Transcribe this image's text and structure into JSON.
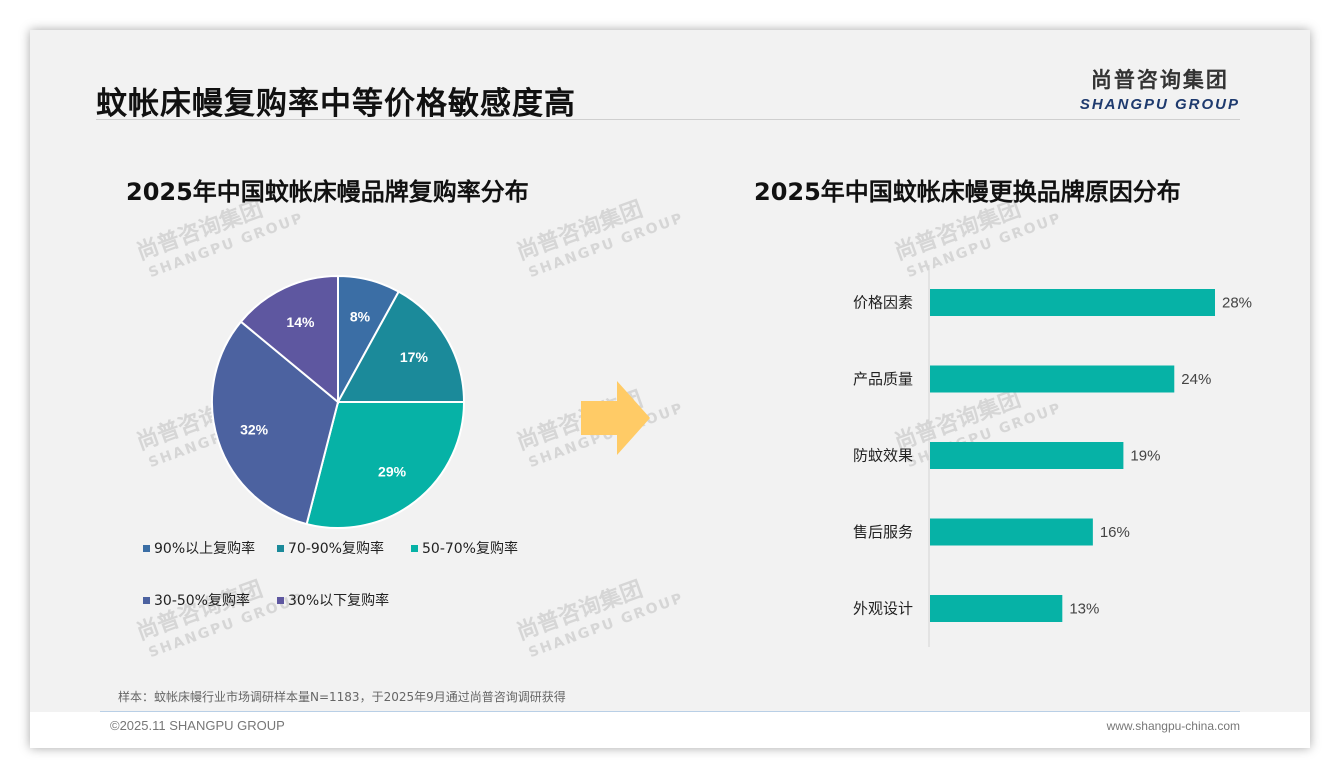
{
  "header": {
    "title": "蚊帐床幔复购率中等价格敏感度高",
    "logo_cn": "尚普咨询集团",
    "logo_en": "SHANGPU GROUP"
  },
  "watermark": {
    "cn": "尚普咨询集团",
    "en": "SHANGPU GROUP"
  },
  "chart_data": [
    {
      "type": "pie",
      "title": "2025年中国蚊帐床幔品牌复购率分布",
      "categories": [
        "90%以上复购率",
        "70-90%复购率",
        "50-70%复购率",
        "30-50%复购率",
        "30%以下复购率"
      ],
      "values": [
        8,
        17,
        29,
        32,
        14
      ],
      "labels": [
        "8%",
        "17%",
        "29%",
        "32%",
        "14%"
      ],
      "colors": [
        "#3b6ea5",
        "#1b8a9a",
        "#06b2a6",
        "#4c62a0",
        "#5e57a0"
      ],
      "legend_position": "bottom"
    },
    {
      "type": "bar",
      "orientation": "horizontal",
      "title": "2025年中国蚊帐床幔更换品牌原因分布",
      "categories": [
        "价格因素",
        "产品质量",
        "防蚊效果",
        "售后服务",
        "外观设计"
      ],
      "values": [
        28,
        24,
        19,
        16,
        13
      ],
      "labels": [
        "28%",
        "24%",
        "19%",
        "16%",
        "13%"
      ],
      "color": "#06b2a6"
    }
  ],
  "arrow_color": "#ffcb66",
  "note": "样本：蚊帐床幔行业市场调研样本量N=1183，于2025年9月通过尚普咨询调研获得",
  "footer": {
    "copyright": "©2025.11 SHANGPU GROUP",
    "website": "www.shangpu-china.com"
  }
}
